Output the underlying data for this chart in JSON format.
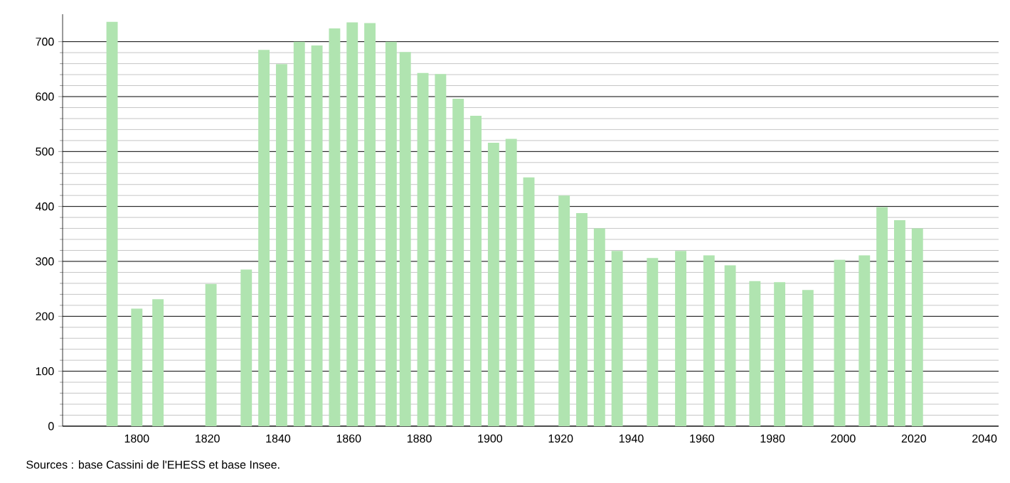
{
  "chart_data": {
    "type": "bar",
    "x": [
      1793,
      1800,
      1806,
      1821,
      1831,
      1836,
      1841,
      1846,
      1851,
      1856,
      1861,
      1866,
      1872,
      1876,
      1881,
      1886,
      1891,
      1896,
      1901,
      1906,
      1911,
      1921,
      1926,
      1931,
      1936,
      1946,
      1954,
      1962,
      1968,
      1975,
      1982,
      1990,
      1999,
      2006,
      2011,
      2016,
      2021
    ],
    "values": [
      736,
      214,
      231,
      259,
      285,
      685,
      659,
      700,
      693,
      724,
      735,
      734,
      700,
      681,
      643,
      641,
      596,
      565,
      516,
      523,
      453,
      420,
      388,
      360,
      319,
      306,
      319,
      311,
      293,
      264,
      262,
      248,
      303,
      311,
      399,
      375,
      360
    ],
    "color": "#b0e4b0",
    "xlim": [
      1779,
      2044
    ],
    "ylim": [
      0,
      750
    ],
    "xticks": [
      1800,
      1820,
      1840,
      1860,
      1880,
      1900,
      1920,
      1940,
      1960,
      1980,
      2000,
      2020,
      2040
    ],
    "yticks": [
      0,
      100,
      200,
      300,
      400,
      500,
      600,
      700
    ],
    "grid": "y",
    "annotations": [
      "Sources : base Cassini de l'EHESS et base Insee."
    ]
  }
}
